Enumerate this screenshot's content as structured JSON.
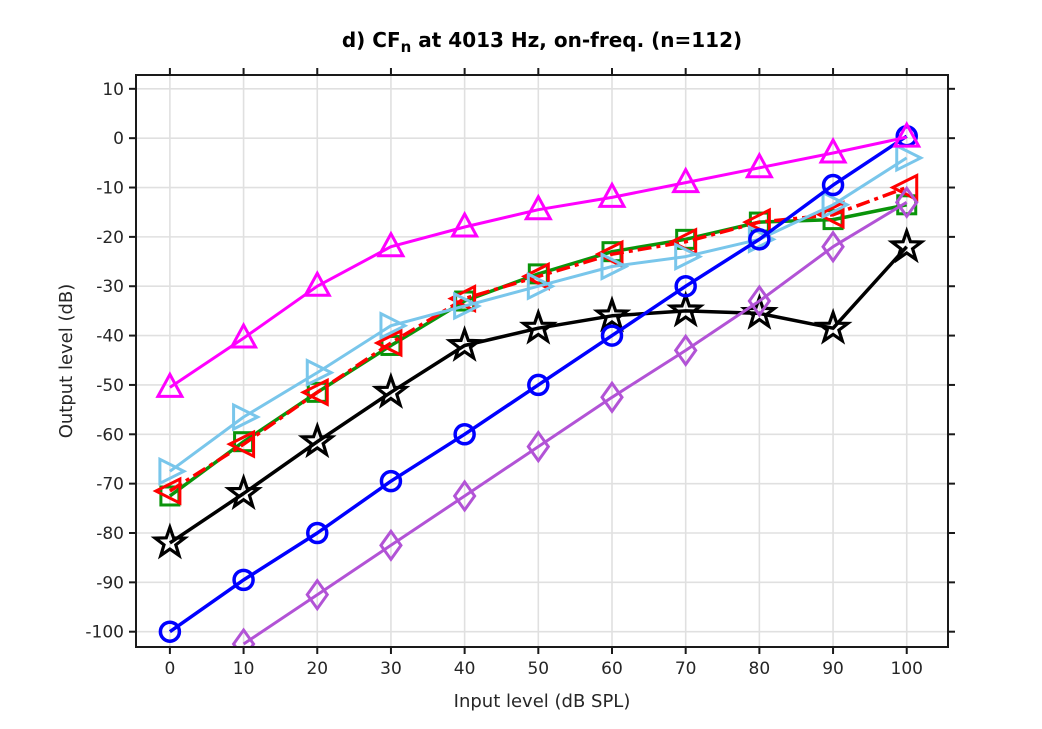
{
  "title": {
    "prefix": "d) CF",
    "subscript": "n",
    "suffix": " at 4013 Hz, on-freq. (n=112)"
  },
  "chart_data": {
    "type": "line",
    "title": "d) CF_n at 4013 Hz, on-freq. (n=112)",
    "xlabel": "Input level (dB SPL)",
    "ylabel": "Output level (dB)",
    "xlim": [
      -4.6,
      105.6
    ],
    "ylim": [
      -103.1,
      12.8
    ],
    "xticks": [
      0,
      10,
      20,
      30,
      40,
      50,
      60,
      70,
      80,
      90,
      100
    ],
    "yticks": [
      10,
      0,
      -10,
      -20,
      -30,
      -40,
      -50,
      -60,
      -70,
      -80,
      -90,
      -100
    ],
    "grid": true,
    "legend": "none",
    "series": [
      {
        "name": "green-square",
        "marker": "square",
        "linestyle": "solid",
        "color": "#0A940A",
        "linewidth": 3.5,
        "x": [
          0,
          10,
          20,
          30,
          40,
          50,
          60,
          70,
          80,
          90,
          100
        ],
        "values": [
          -72.5,
          -61.5,
          -51.5,
          -42,
          -33,
          -27.5,
          -23,
          -20.5,
          -17,
          -16.5,
          -13.5
        ]
      },
      {
        "name": "red-left-triangle",
        "marker": "triangle-left",
        "linestyle": "dashdot",
        "color": "#FF0000",
        "linewidth": 3.5,
        "x": [
          0,
          10,
          20,
          30,
          40,
          50,
          60,
          70,
          80,
          90,
          100
        ],
        "values": [
          -71.5,
          -62,
          -51.5,
          -41.5,
          -32.5,
          -28,
          -23.5,
          -21,
          -17,
          -15.5,
          -10
        ]
      },
      {
        "name": "cyan-right-triangle",
        "marker": "triangle-right",
        "linestyle": "solid",
        "color": "#79C6EB",
        "linewidth": 3,
        "x": [
          0,
          10,
          20,
          30,
          40,
          50,
          60,
          70,
          80,
          90,
          100
        ],
        "values": [
          -67.5,
          -56.5,
          -47.5,
          -38,
          -34,
          -30,
          -26,
          -24,
          -20.5,
          -13.5,
          -4
        ]
      },
      {
        "name": "black-star",
        "marker": "star",
        "linestyle": "solid",
        "color": "#000000",
        "linewidth": 3.5,
        "x": [
          0,
          10,
          20,
          30,
          40,
          50,
          60,
          70,
          80,
          90,
          100
        ],
        "values": [
          -82,
          -72,
          -61.5,
          -51.5,
          -42,
          -38.5,
          -36,
          -35,
          -35.5,
          -38.5,
          -22
        ]
      },
      {
        "name": "blue-circle",
        "marker": "circle",
        "linestyle": "solid",
        "color": "#0000FF",
        "linewidth": 3.5,
        "x": [
          0,
          10,
          20,
          30,
          40,
          50,
          60,
          70,
          80,
          90,
          100
        ],
        "values": [
          -100,
          -89.5,
          -80,
          -69.5,
          -60,
          -50,
          -40,
          -30,
          -20.5,
          -9.5,
          0.4
        ]
      },
      {
        "name": "purple-diamond",
        "marker": "diamond",
        "linestyle": "solid",
        "color": "#B253D6",
        "linewidth": 3,
        "x": [
          10,
          20,
          30,
          40,
          50,
          60,
          70,
          80,
          90,
          100
        ],
        "values": [
          -102.5,
          -92.5,
          -82.5,
          -72.5,
          -62.5,
          -52.5,
          -43,
          -33,
          -22,
          -13
        ]
      },
      {
        "name": "magenta-up-triangle",
        "marker": "triangle-up",
        "linestyle": "solid",
        "color": "#FF00FF",
        "linewidth": 3,
        "x": [
          0,
          10,
          20,
          30,
          40,
          50,
          60,
          70,
          80,
          90,
          100
        ],
        "values": [
          -50.5,
          -40.5,
          -30,
          -22,
          -18,
          -14.5,
          -12,
          -9,
          -6,
          -3,
          0.2
        ]
      }
    ]
  },
  "style": {
    "grid_color": "#E0E0E0",
    "spine_color": "#1a1a1a",
    "tick_label_color": "#262626",
    "background": "#ffffff"
  }
}
